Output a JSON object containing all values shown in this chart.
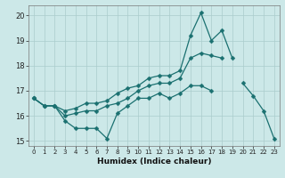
{
  "xlabel": "Humidex (Indice chaleur)",
  "x": [
    0,
    1,
    2,
    3,
    4,
    5,
    6,
    7,
    8,
    9,
    10,
    11,
    12,
    13,
    14,
    15,
    16,
    17,
    18,
    19,
    20,
    21,
    22,
    23
  ],
  "line_max": [
    16.7,
    16.4,
    16.4,
    16.2,
    16.3,
    16.5,
    16.5,
    16.6,
    16.9,
    17.1,
    17.2,
    17.5,
    17.6,
    17.6,
    17.8,
    19.2,
    20.1,
    19.0,
    19.4,
    18.3,
    null,
    null,
    null,
    null
  ],
  "line_avg": [
    16.7,
    16.4,
    16.4,
    16.0,
    16.1,
    16.2,
    16.2,
    16.4,
    16.5,
    16.7,
    17.0,
    17.2,
    17.3,
    17.3,
    17.5,
    18.3,
    18.5,
    18.4,
    18.3,
    null,
    null,
    null,
    null,
    null
  ],
  "line_min": [
    16.7,
    16.4,
    16.4,
    15.8,
    15.5,
    15.5,
    15.5,
    15.1,
    16.1,
    16.4,
    16.7,
    16.7,
    16.9,
    16.7,
    16.9,
    17.2,
    17.2,
    17.0,
    null,
    null,
    17.3,
    16.8,
    16.2,
    15.1
  ],
  "bg_color": "#cce8e8",
  "grid_color": "#aacccc",
  "line_color": "#1a7070",
  "xlim": [
    -0.5,
    23.5
  ],
  "ylim": [
    14.8,
    20.4
  ],
  "yticks": [
    15,
    16,
    17,
    18,
    19,
    20
  ],
  "xticks": [
    0,
    1,
    2,
    3,
    4,
    5,
    6,
    7,
    8,
    9,
    10,
    11,
    12,
    13,
    14,
    15,
    16,
    17,
    18,
    19,
    20,
    21,
    22,
    23
  ]
}
